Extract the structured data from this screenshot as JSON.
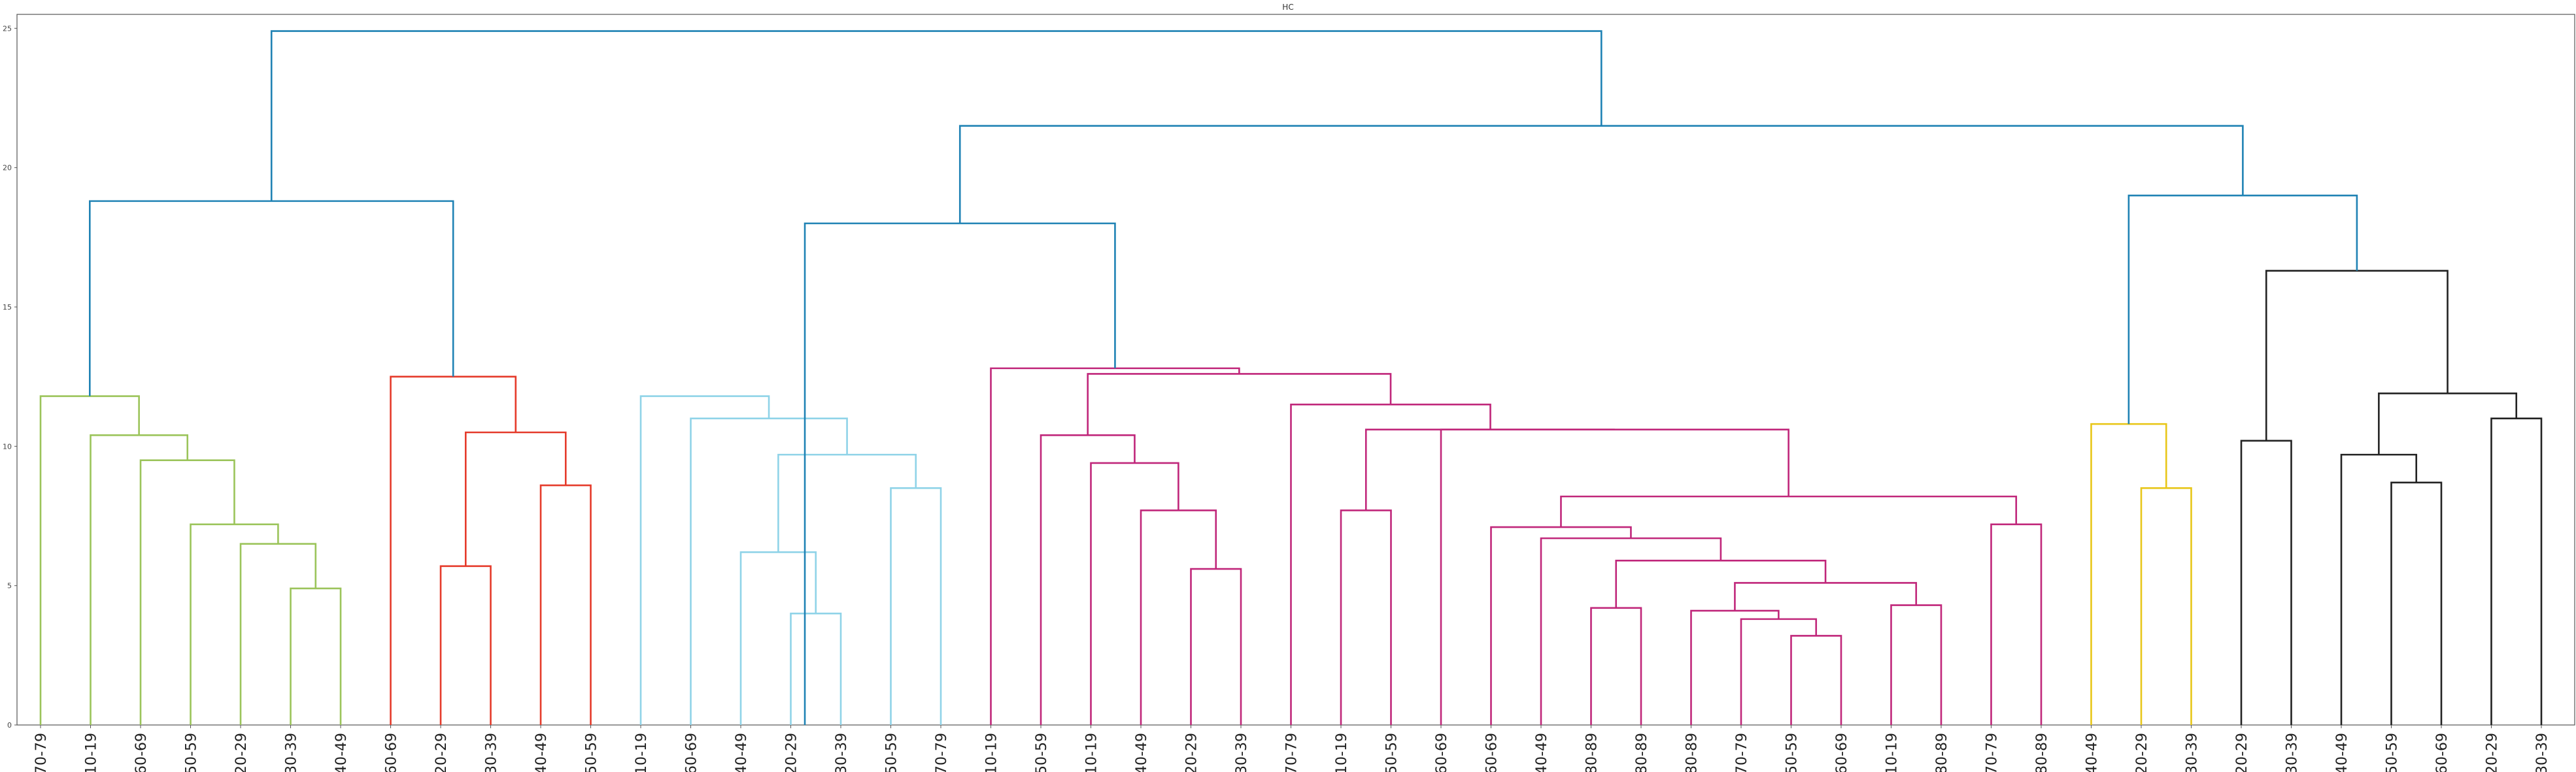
{
  "chart_data": {
    "type": "dendrogram",
    "title": "HC",
    "ylim": [
      0,
      25.5
    ],
    "yticks": [
      "0",
      "5",
      "10",
      "15",
      "20",
      "25"
    ],
    "yticks_values": [
      0,
      5,
      10,
      15,
      20,
      25
    ],
    "grid": false,
    "leaves": [
      "70-79",
      "10-19",
      "60-69",
      "50-59",
      "20-29",
      "30-39",
      "40-49",
      "60-69",
      "20-29",
      "30-39",
      "40-49",
      "50-59",
      "10-19",
      "60-69",
      "40-49",
      "20-29",
      "30-39",
      "50-59",
      "70-79",
      "10-19",
      "50-59",
      "10-19",
      "40-49",
      "20-29",
      "30-39",
      "70-79",
      "10-19",
      "50-59",
      "60-69",
      "60-69",
      "40-49",
      "80-89",
      "80-89",
      "80-89",
      "70-79",
      "50-59",
      "60-69",
      "10-19",
      "80-89",
      "70-79",
      "80-89",
      "40-49",
      "20-29",
      "30-39",
      "20-29",
      "30-39",
      "40-49",
      "50-59",
      "60-69",
      "20-29",
      "30-39"
    ],
    "links": [
      {
        "l": 5,
        "r": 6,
        "h": 4.9,
        "color": "#9bc45a"
      },
      {
        "l": 4,
        "r": 5.5,
        "h": 6.5,
        "color": "#9bc45a"
      },
      {
        "l": 3,
        "r": 4.75,
        "h": 7.2,
        "color": "#9bc45a"
      },
      {
        "l": 2,
        "r": 3.875,
        "h": 9.5,
        "color": "#9bc45a"
      },
      {
        "l": 1,
        "r": 2.9375,
        "h": 10.4,
        "color": "#9bc45a"
      },
      {
        "l": 0,
        "r": 1.96875,
        "h": 11.8,
        "color": "#9bc45a"
      },
      {
        "l": 8,
        "r": 9,
        "h": 5.7,
        "color": "#e53a2a"
      },
      {
        "l": 10,
        "r": 11,
        "h": 8.6,
        "color": "#e53a2a"
      },
      {
        "l": 8.5,
        "r": 10.5,
        "h": 10.5,
        "color": "#e53a2a"
      },
      {
        "l": 7,
        "r": 9.5,
        "h": 12.5,
        "color": "#e53a2a"
      },
      {
        "l": 15,
        "r": 16,
        "h": 4.0,
        "color": "#8fd3e8"
      },
      {
        "l": 14,
        "r": 15.5,
        "h": 6.2,
        "color": "#8fd3e8"
      },
      {
        "l": 17,
        "r": 18,
        "h": 8.5,
        "color": "#8fd3e8"
      },
      {
        "l": 14.75,
        "r": 17.5,
        "h": 9.7,
        "color": "#8fd3e8"
      },
      {
        "l": 13,
        "r": 16.125,
        "h": 11.0,
        "color": "#8fd3e8"
      },
      {
        "l": 12,
        "r": 14.5625,
        "h": 11.8,
        "color": "#8fd3e8"
      },
      {
        "l": 23,
        "r": 24,
        "h": 5.6,
        "color": "#c0267a"
      },
      {
        "l": 22,
        "r": 23.5,
        "h": 7.7,
        "color": "#c0267a"
      },
      {
        "l": 21,
        "r": 22.75,
        "h": 9.4,
        "color": "#c0267a"
      },
      {
        "l": 20,
        "r": 21.875,
        "h": 10.4,
        "color": "#c0267a"
      },
      {
        "l": 35,
        "r": 36,
        "h": 3.2,
        "color": "#c0267a"
      },
      {
        "l": 34,
        "r": 35.5,
        "h": 3.8,
        "color": "#c0267a"
      },
      {
        "l": 33,
        "r": 34.75,
        "h": 4.1,
        "color": "#c0267a"
      },
      {
        "l": 37,
        "r": 38,
        "h": 4.3,
        "color": "#c0267a"
      },
      {
        "l": 33.875,
        "r": 37.5,
        "h": 5.1,
        "color": "#c0267a"
      },
      {
        "l": 31,
        "r": 32,
        "h": 4.2,
        "color": "#c0267a"
      },
      {
        "l": 31.5,
        "r": 35.6875,
        "h": 5.9,
        "color": "#c0267a"
      },
      {
        "l": 30,
        "r": 33.59375,
        "h": 6.7,
        "color": "#c0267a"
      },
      {
        "l": 29,
        "r": 31.796875,
        "h": 7.1,
        "color": "#c0267a"
      },
      {
        "l": 39,
        "r": 40,
        "h": 7.2,
        "color": "#c0267a"
      },
      {
        "l": 30.3984375,
        "r": 39.5,
        "h": 8.2,
        "color": "#c0267a"
      },
      {
        "l": 28,
        "r": 34.94921875,
        "h": 10.6,
        "color": "#c0267a"
      },
      {
        "l": 26,
        "r": 27,
        "h": 7.7,
        "color": "#c0267a"
      },
      {
        "l": 26.5,
        "r": 31.474609375,
        "h": 10.6,
        "color": "#c0267a"
      },
      {
        "l": 25,
        "r": 28.9873046875,
        "h": 11.5,
        "color": "#c0267a"
      },
      {
        "l": 20.9375,
        "r": 26.99365234375,
        "h": 12.6,
        "color": "#c0267a"
      },
      {
        "l": 19,
        "r": 23.965576171875,
        "h": 12.8,
        "color": "#c0267a"
      },
      {
        "l": 42,
        "r": 43,
        "h": 8.5,
        "color": "#e8c619"
      },
      {
        "l": 41,
        "r": 42.5,
        "h": 10.8,
        "color": "#e8c619"
      },
      {
        "l": 44,
        "r": 45,
        "h": 10.2,
        "color": "#222222"
      },
      {
        "l": 47,
        "r": 48,
        "h": 8.7,
        "color": "#222222"
      },
      {
        "l": 46,
        "r": 47.5,
        "h": 9.7,
        "color": "#222222"
      },
      {
        "l": 49,
        "r": 50,
        "h": 11.0,
        "color": "#222222"
      },
      {
        "l": 46.75,
        "r": 49.5,
        "h": 11.9,
        "color": "#222222"
      },
      {
        "l": 44.5,
        "r": 48.125,
        "h": 16.3,
        "color": "#222222"
      },
      {
        "l": 41.75,
        "r": 46.3125,
        "h": 19.0,
        "color": "#1f82b4"
      },
      {
        "l": 15.28125,
        "r": 21.4827880859375,
        "h": 18.0,
        "color": "#1f82b4"
      },
      {
        "l": 18.38201904296875,
        "r": 44.03125,
        "h": 21.5,
        "color": "#1f82b4"
      },
      {
        "l": 0.984375,
        "r": 8.25,
        "h": 18.8,
        "color": "#1f82b4"
      },
      {
        "l": 4.6171875,
        "r": 31.206634521484375,
        "h": 24.9,
        "color": "#1f82b4"
      }
    ]
  }
}
